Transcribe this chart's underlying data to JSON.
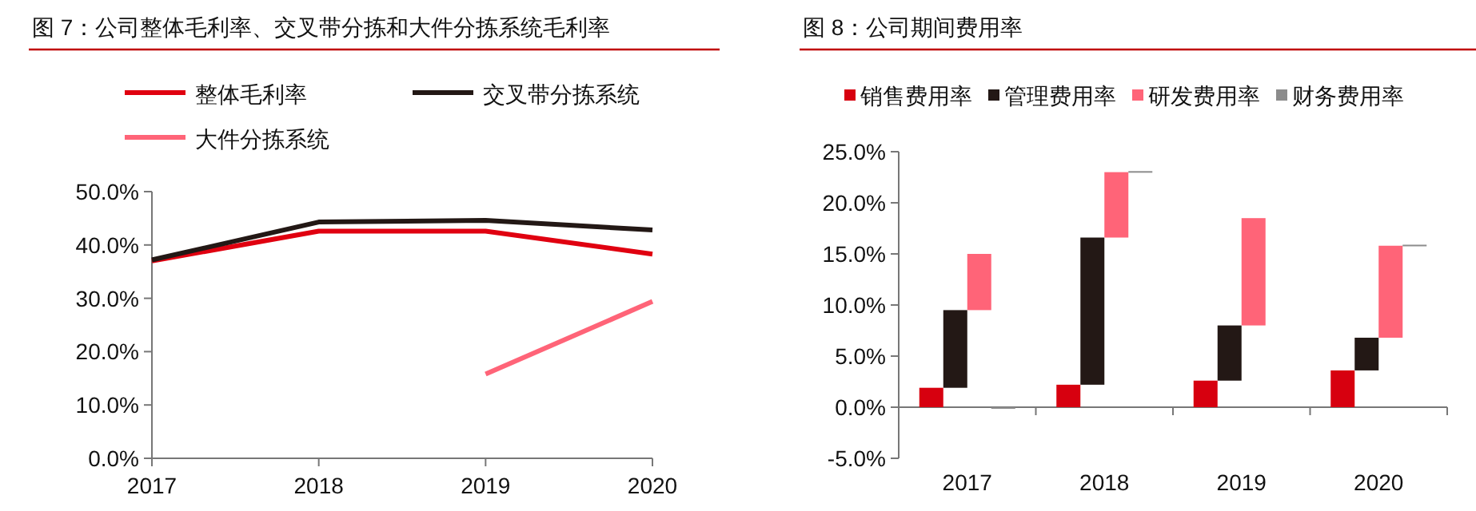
{
  "chart_data": [
    {
      "type": "line",
      "title": "图 7：公司整体毛利率、交叉带分拣和大件分拣系统毛利率",
      "categories": [
        "2017",
        "2018",
        "2019",
        "2020"
      ],
      "ylim": [
        0,
        50
      ],
      "yticks": [
        {
          "value": 0,
          "label": "0.0%"
        },
        {
          "value": 10,
          "label": "10.0%"
        },
        {
          "value": 20,
          "label": "20.0%"
        },
        {
          "value": 30,
          "label": "30.0%"
        },
        {
          "value": 40,
          "label": "40.0%"
        },
        {
          "value": 50,
          "label": "50.0%"
        }
      ],
      "grid": false,
      "legend": "top",
      "line_style": "solid",
      "marker": "none",
      "series": [
        {
          "name": "整体毛利率",
          "color": "#e00010",
          "values": [
            37.0,
            42.6,
            42.6,
            38.3
          ]
        },
        {
          "name": "交叉带分拣系统",
          "color": "#231815",
          "values": [
            37.2,
            44.3,
            44.6,
            42.8
          ]
        },
        {
          "name": "大件分拣系统",
          "color": "#ff6478",
          "values": [
            null,
            null,
            15.8,
            29.4
          ]
        }
      ]
    },
    {
      "type": "bar",
      "title": "图 8：公司期间费用率",
      "categories": [
        "2017",
        "2018",
        "2019",
        "2020"
      ],
      "ylim": [
        -5,
        25
      ],
      "yticks": [
        {
          "value": -5,
          "label": "-5.0%"
        },
        {
          "value": 0,
          "label": "0.0%"
        },
        {
          "value": 5,
          "label": "5.0%"
        },
        {
          "value": 10,
          "label": "10.0%"
        },
        {
          "value": 15,
          "label": "15.0%"
        },
        {
          "value": 20,
          "label": "20.0%"
        },
        {
          "value": 25,
          "label": "25.0%"
        }
      ],
      "grid": false,
      "legend": "top",
      "series": [
        {
          "name": "销售费用率",
          "color": "#d7000f",
          "base": [
            0,
            0,
            0,
            0
          ],
          "values": [
            1.9,
            2.2,
            2.6,
            3.6
          ]
        },
        {
          "name": "管理费用率",
          "color": "#231815",
          "base": [
            1.9,
            2.2,
            2.6,
            3.6
          ],
          "values": [
            7.6,
            14.4,
            5.4,
            3.2
          ]
        },
        {
          "name": "研发费用率",
          "color": "#ff6478",
          "base": [
            9.5,
            16.6,
            8.0,
            6.8
          ],
          "values": [
            5.5,
            6.4,
            10.5,
            9.0
          ]
        },
        {
          "name": "财务费用率",
          "color": "#8c8c8c",
          "base": [
            0,
            23.0,
            null,
            15.8
          ],
          "values": [
            0,
            0.1,
            null,
            0.1
          ]
        }
      ]
    }
  ]
}
